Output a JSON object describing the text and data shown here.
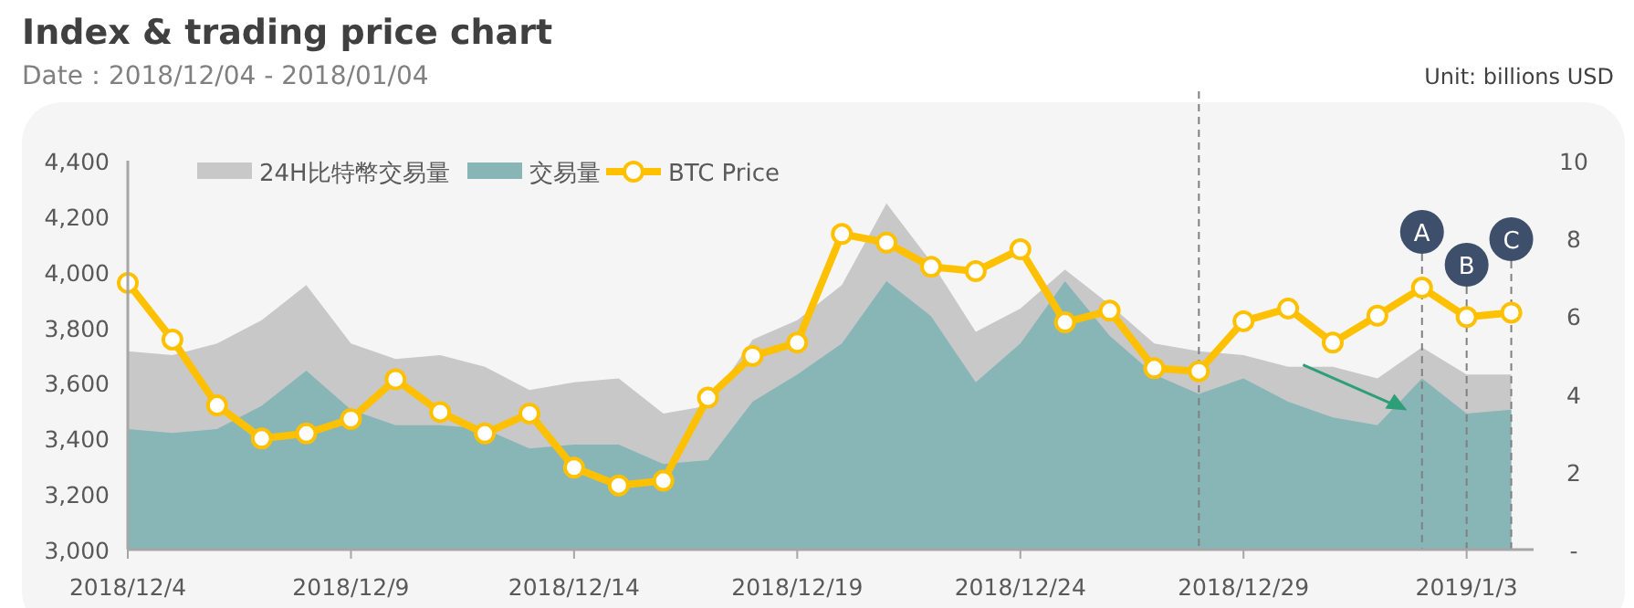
{
  "chart_data": {
    "type": "line",
    "title": "Index & trading price chart",
    "subtitle": "Date：2018/12/04 - 2018/01/04",
    "annotations": [
      "Unit: billions USD"
    ],
    "x": [
      "2018-12-04",
      "2018-12-05",
      "2018-12-06",
      "2018-12-07",
      "2018-12-08",
      "2018-12-09",
      "2018-12-10",
      "2018-12-11",
      "2018-12-12",
      "2018-12-13",
      "2018-12-14",
      "2018-12-15",
      "2018-12-16",
      "2018-12-17",
      "2018-12-18",
      "2018-12-19",
      "2018-12-20",
      "2018-12-21",
      "2018-12-22",
      "2018-12-23",
      "2018-12-24",
      "2018-12-25",
      "2018-12-26",
      "2018-12-27",
      "2018-12-28",
      "2018-12-29",
      "2018-12-30",
      "2018-12-31",
      "2019-01-01",
      "2019-01-02",
      "2019-01-03",
      "2019-01-04"
    ],
    "xlim": [
      "2018-12-04",
      "2019-01-04T12:00"
    ],
    "xticks": [
      {
        "value": "2018-12-04",
        "label": "2018/12/4"
      },
      {
        "value": "2018-12-09",
        "label": "2018/12/9"
      },
      {
        "value": "2018-12-14",
        "label": "2018/12/14"
      },
      {
        "value": "2018-12-19",
        "label": "2018/12/19"
      },
      {
        "value": "2018-12-24",
        "label": "2018/12/24"
      },
      {
        "value": "2018-12-29",
        "label": "2018/12/29"
      },
      {
        "value": "2019-01-03",
        "label": "2019/1/3"
      }
    ],
    "ylim": [
      3000,
      4400
    ],
    "yticks": [
      {
        "value": 3000,
        "label": "3,000"
      },
      {
        "value": 3200,
        "label": "3,200"
      },
      {
        "value": 3400,
        "label": "3,400"
      },
      {
        "value": 3600,
        "label": "3,600"
      },
      {
        "value": 3800,
        "label": "3,800"
      },
      {
        "value": 4000,
        "label": "4,000"
      },
      {
        "value": 4200,
        "label": "4,200"
      },
      {
        "value": 4400,
        "label": "4,400"
      }
    ],
    "y2lim": [
      0,
      10
    ],
    "y2ticks": [
      {
        "value": 0,
        "label": "-"
      },
      2,
      4,
      6,
      8,
      10
    ],
    "series": [
      {
        "name": "24H比特幣交易量",
        "type": "area",
        "axis": "y2",
        "color": "#c8c8c8",
        "values": [
          5.1,
          5.0,
          5.3,
          5.9,
          6.8,
          5.3,
          4.9,
          5.0,
          4.7,
          4.1,
          4.3,
          4.4,
          3.5,
          3.7,
          5.4,
          5.9,
          6.8,
          8.9,
          7.4,
          5.6,
          6.2,
          7.2,
          6.3,
          5.3,
          5.1,
          5.0,
          4.7,
          4.7,
          4.4,
          5.2,
          4.5,
          4.5
        ]
      },
      {
        "name": "交易量",
        "type": "area",
        "axis": "y2",
        "color": "#88b6b7",
        "values": [
          3.1,
          3.0,
          3.1,
          3.7,
          4.6,
          3.6,
          3.2,
          3.2,
          3.1,
          2.6,
          2.7,
          2.7,
          2.2,
          2.3,
          3.8,
          4.5,
          5.3,
          6.9,
          6.0,
          4.3,
          5.3,
          6.9,
          5.5,
          4.5,
          4.0,
          4.4,
          3.8,
          3.4,
          3.2,
          4.4,
          3.5,
          3.6
        ]
      },
      {
        "name": "BTC Price",
        "color": "#ffc000",
        "marker": "circle",
        "values": [
          3960,
          3756,
          3519,
          3400,
          3418,
          3470,
          3613,
          3495,
          3418,
          3490,
          3295,
          3231,
          3248,
          3547,
          3697,
          3745,
          4136,
          4105,
          4018,
          4002,
          4081,
          3818,
          3860,
          3653,
          3642,
          3822,
          3868,
          3745,
          3842,
          3943,
          3837,
          3853
        ]
      }
    ],
    "ref_lines": [
      {
        "axis": "x",
        "value": "2018-12-28",
        "color": "#808080",
        "line_style": "dashed"
      },
      {
        "axis": "x",
        "value": "2019-01-02",
        "label": "A",
        "color": "#808080",
        "line_style": "dashed"
      },
      {
        "axis": "x",
        "value": "2019-01-03",
        "label": "B",
        "color": "#808080",
        "line_style": "dashed"
      },
      {
        "axis": "x",
        "value": "2019-01-04",
        "label": "C",
        "color": "#808080",
        "line_style": "dashed"
      }
    ],
    "legend": "top left",
    "grid": false
  }
}
